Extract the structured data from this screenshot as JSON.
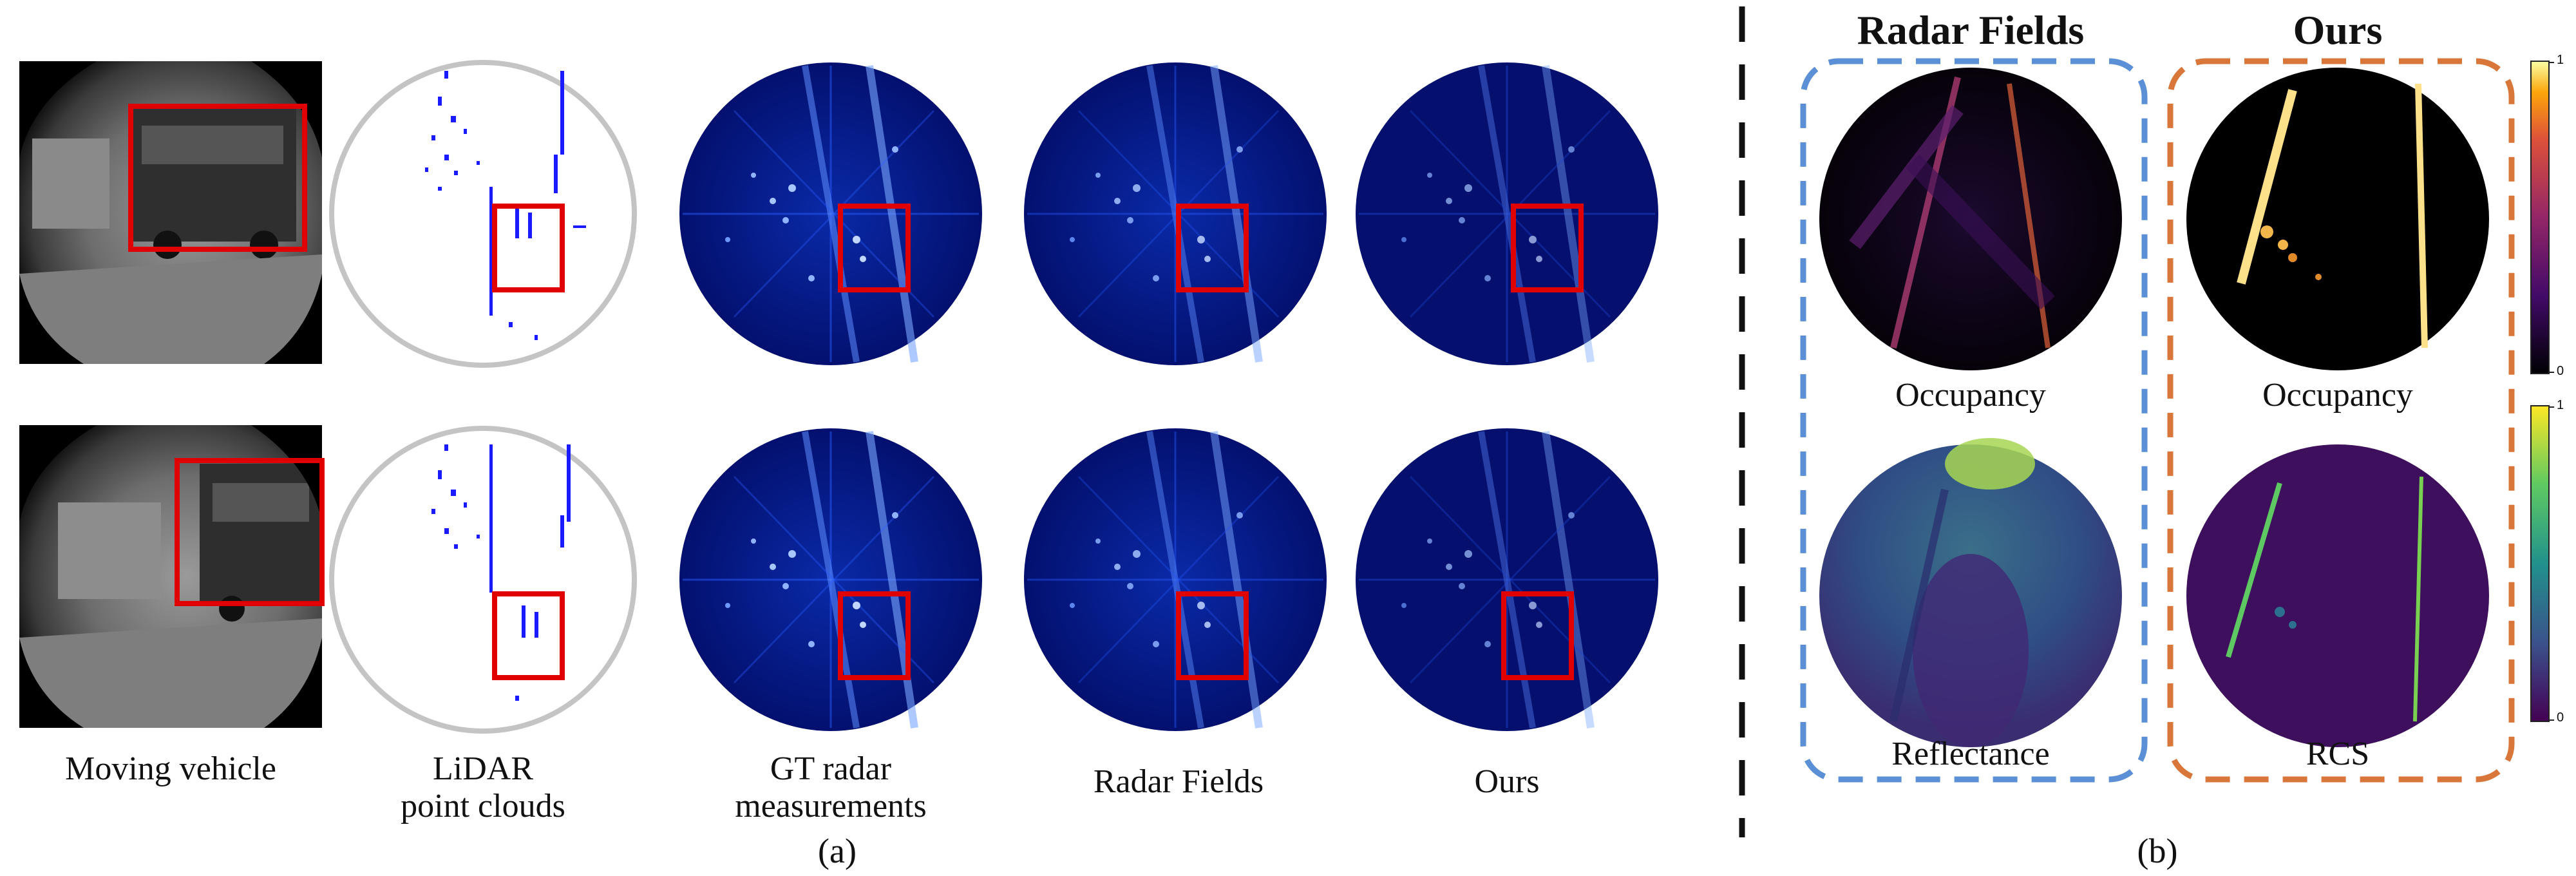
{
  "panel_a": {
    "column_labels": [
      "Moving vehicle",
      "LiDAR\npoint clouds",
      "GT radar\nmeasurements",
      "Radar Fields",
      "Ours"
    ],
    "caption": "(a)"
  },
  "panel_b": {
    "titles": [
      "Radar Fields",
      "Ours"
    ],
    "cell_labels": [
      "Occupancy",
      "Occupancy",
      "Reflectance",
      "RCS"
    ],
    "colorbars": [
      {
        "name": "inferno",
        "max_label": "1",
        "min_label": "0"
      },
      {
        "name": "viridis",
        "max_label": "1",
        "min_label": "0"
      }
    ],
    "caption": "(b)"
  },
  "colors": {
    "highlight_box": "#e00000",
    "radar_dark": "#05106e",
    "radar_light": "#3a6cff",
    "lidar_points": "#1a1aff",
    "radar_fields_frame": "#5b8fd6",
    "ours_frame": "#d9763a",
    "divider": "#111111"
  }
}
